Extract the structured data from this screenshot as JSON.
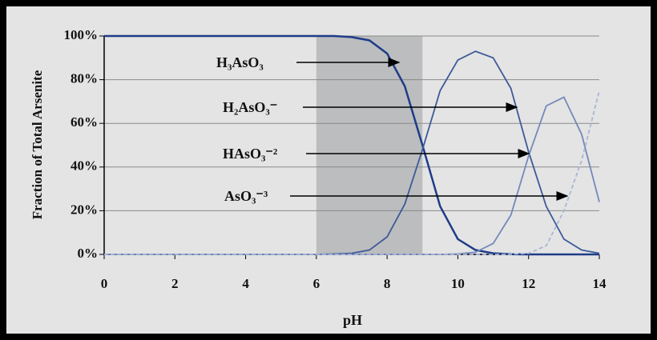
{
  "chart_data": {
    "type": "line",
    "x_label": "pH",
    "y_label": "Fraction of Total Arsenite",
    "x": [
      0,
      0.5,
      1,
      1.5,
      2,
      2.5,
      3,
      3.5,
      4,
      4.5,
      5,
      5.5,
      6,
      6.5,
      7,
      7.5,
      8,
      8.5,
      9,
      9.5,
      10,
      10.5,
      11,
      11.5,
      12,
      12.5,
      13,
      13.5,
      14
    ],
    "series": [
      {
        "name": "H₃AsO₃",
        "color": "#1f3c88",
        "values": [
          100,
          100,
          100,
          100,
          100,
          100,
          100,
          100,
          100,
          100,
          100,
          100,
          100,
          100,
          99.5,
          98,
          92,
          77,
          50,
          22,
          7,
          2,
          0.5,
          0.1,
          0,
          0,
          0,
          0,
          0
        ]
      },
      {
        "name": "H₂AsO₃⁻",
        "color": "#3d5a99",
        "values": [
          0,
          0,
          0,
          0,
          0,
          0,
          0,
          0,
          0,
          0,
          0,
          0,
          0,
          0.2,
          0.5,
          2,
          8,
          23,
          48,
          75,
          89,
          93,
          90,
          76,
          47,
          22,
          7,
          2,
          0.5
        ]
      },
      {
        "name": "HAsO₃⁻²",
        "color": "#7489bb",
        "values": [
          0,
          0,
          0,
          0,
          0,
          0,
          0,
          0,
          0,
          0,
          0,
          0,
          0,
          0,
          0,
          0,
          0,
          0,
          0,
          0,
          0.2,
          1,
          5,
          18,
          45,
          68,
          72,
          55,
          24
        ]
      },
      {
        "name": "AsO₃⁻³",
        "color": "#a9b5d6",
        "dashed": true,
        "values": [
          0,
          0,
          0,
          0,
          0,
          0,
          0,
          0,
          0,
          0,
          0,
          0,
          0,
          0,
          0,
          0,
          0,
          0,
          0,
          0,
          0,
          0,
          0,
          0.1,
          0.5,
          4,
          20,
          43,
          75
        ]
      }
    ],
    "shaded_range": [
      6,
      9
    ],
    "xlim": [
      0,
      14
    ],
    "xticks": [
      0,
      2,
      4,
      6,
      8,
      10,
      12,
      14
    ],
    "ylim": [
      0,
      100
    ],
    "yticks": [
      {
        "value": 0,
        "label": "0%"
      },
      {
        "value": 20,
        "label": "20%"
      },
      {
        "value": 40,
        "label": "40%"
      },
      {
        "value": 60,
        "label": "60%"
      },
      {
        "value": 80,
        "label": "80%"
      },
      {
        "value": 100,
        "label": "100%"
      }
    ],
    "grid": true
  }
}
